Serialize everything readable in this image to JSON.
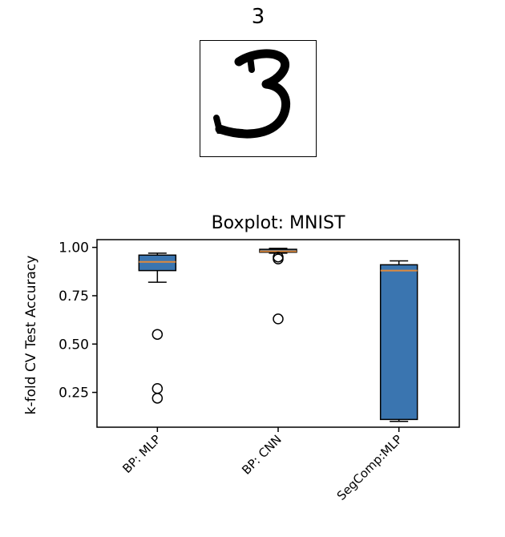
{
  "digit_panel": {
    "title": "3",
    "image_icon": "handwritten-digit-3-image"
  },
  "chart_data": {
    "type": "boxplot",
    "title": "Boxplot: MNIST",
    "xlabel": "",
    "ylabel": "k-fold CV Test Accuracy",
    "categories": [
      "BP: MLP",
      "BP: CNN",
      "SegComp:MLP"
    ],
    "ylim": [
      0.07,
      1.04
    ],
    "yticks": [
      0.25,
      0.5,
      0.75,
      1.0
    ],
    "ytick_labels": [
      "0.25",
      "0.50",
      "0.75",
      "1.00"
    ],
    "grid": false,
    "boxes": [
      {
        "whisker_low": 0.82,
        "q1": 0.88,
        "median": 0.925,
        "q3": 0.96,
        "whisker_high": 0.97,
        "outliers": [
          0.55,
          0.27,
          0.22
        ]
      },
      {
        "whisker_low": 0.97,
        "q1": 0.975,
        "median": 0.98,
        "q3": 0.99,
        "whisker_high": 0.995,
        "outliers": [
          0.95,
          0.94,
          0.63
        ]
      },
      {
        "whisker_low": 0.1,
        "q1": 0.11,
        "median": 0.88,
        "q3": 0.91,
        "whisker_high": 0.93,
        "outliers": []
      }
    ],
    "colors": {
      "box_fill": "#3a75b0",
      "median": "#e08a3c",
      "line": "#000000"
    }
  }
}
